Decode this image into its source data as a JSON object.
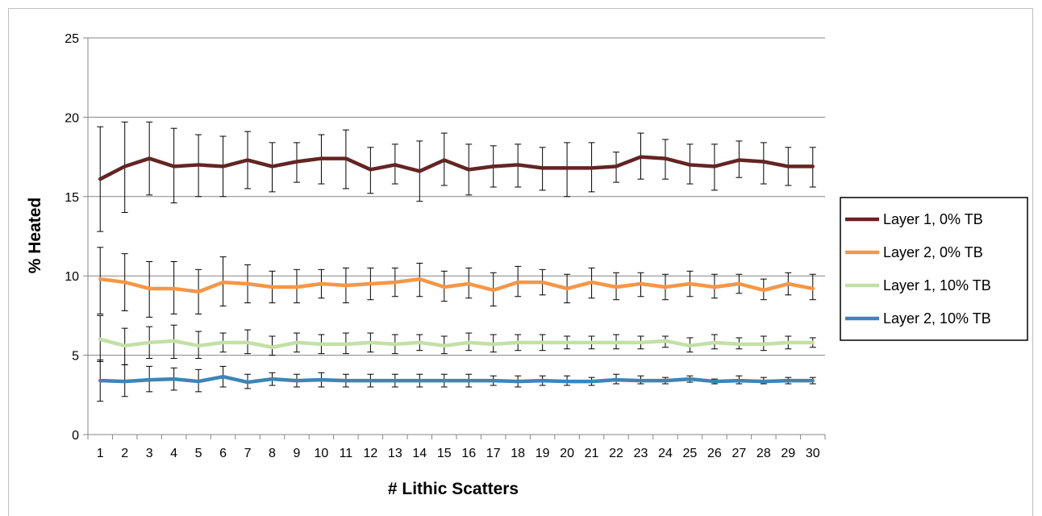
{
  "chart_data": {
    "type": "line",
    "title": "",
    "xlabel": "# Lithic Scatters",
    "ylabel": "% Heated",
    "x": [
      1,
      2,
      3,
      4,
      5,
      6,
      7,
      8,
      9,
      10,
      11,
      12,
      13,
      14,
      15,
      16,
      17,
      18,
      19,
      20,
      21,
      22,
      23,
      24,
      25,
      26,
      27,
      28,
      29,
      30
    ],
    "x_tick_labels": [
      "1",
      "2",
      "3",
      "4",
      "5",
      "6",
      "7",
      "8",
      "9",
      "10",
      "11",
      "12",
      "13",
      "14",
      "15",
      "16",
      "17",
      "18",
      "19",
      "20",
      "21",
      "22",
      "23",
      "24",
      "25",
      "26",
      "27",
      "28",
      "29",
      "30"
    ],
    "ylim": [
      0,
      25
    ],
    "y_ticks": [
      "0",
      "5",
      "10",
      "15",
      "20",
      "25"
    ],
    "grid": "horizontal",
    "legend_position": "right",
    "series": [
      {
        "name": "Layer 1, 0% TB",
        "color": "#632523",
        "values": [
          16.1,
          16.9,
          17.4,
          16.9,
          17.0,
          16.9,
          17.3,
          16.9,
          17.2,
          17.4,
          17.4,
          16.7,
          17.0,
          16.6,
          17.3,
          16.7,
          16.9,
          17.0,
          16.8,
          16.8,
          16.8,
          16.9,
          17.5,
          17.4,
          17.0,
          16.9,
          17.3,
          17.2,
          16.9,
          16.9
        ],
        "err_low": [
          12.8,
          14.0,
          15.1,
          14.6,
          15.0,
          15.0,
          15.5,
          15.3,
          15.9,
          15.8,
          15.5,
          15.2,
          15.8,
          14.7,
          15.7,
          15.1,
          15.6,
          15.6,
          15.4,
          15.0,
          15.3,
          15.9,
          16.1,
          16.1,
          15.8,
          15.4,
          16.2,
          15.8,
          15.7,
          15.6
        ],
        "err_high": [
          19.4,
          19.7,
          19.7,
          19.3,
          18.9,
          18.8,
          19.1,
          18.4,
          18.4,
          18.9,
          19.2,
          18.1,
          18.3,
          18.5,
          19.0,
          18.3,
          18.2,
          18.3,
          18.1,
          18.4,
          18.4,
          17.8,
          19.0,
          18.6,
          18.3,
          18.3,
          18.5,
          18.4,
          18.1,
          18.1
        ]
      },
      {
        "name": "Layer 2, 0% TB",
        "color": "#f79646",
        "values": [
          9.8,
          9.6,
          9.2,
          9.2,
          9.0,
          9.6,
          9.5,
          9.3,
          9.3,
          9.5,
          9.4,
          9.5,
          9.6,
          9.8,
          9.3,
          9.5,
          9.1,
          9.6,
          9.6,
          9.2,
          9.6,
          9.3,
          9.5,
          9.3,
          9.5,
          9.3,
          9.5,
          9.1,
          9.5,
          9.2
        ],
        "err_low": [
          7.6,
          7.8,
          7.4,
          7.6,
          7.6,
          8.1,
          8.3,
          8.3,
          8.3,
          8.6,
          8.3,
          8.5,
          8.7,
          8.7,
          8.4,
          8.6,
          8.1,
          8.7,
          8.8,
          8.3,
          8.6,
          8.5,
          8.7,
          8.5,
          8.7,
          8.6,
          8.9,
          8.5,
          8.8,
          8.5
        ],
        "err_high": [
          11.8,
          11.4,
          10.9,
          10.9,
          10.4,
          11.2,
          10.7,
          10.3,
          10.4,
          10.4,
          10.5,
          10.5,
          10.5,
          10.8,
          10.3,
          10.5,
          10.2,
          10.6,
          10.4,
          10.1,
          10.5,
          10.2,
          10.2,
          10.1,
          10.3,
          10.1,
          10.1,
          9.8,
          10.2,
          10.1
        ]
      },
      {
        "name": "Layer 1, 10% TB",
        "color": "#c3e0a6",
        "values": [
          6.0,
          5.6,
          5.8,
          5.9,
          5.6,
          5.8,
          5.8,
          5.5,
          5.8,
          5.7,
          5.7,
          5.8,
          5.7,
          5.8,
          5.6,
          5.8,
          5.7,
          5.8,
          5.8,
          5.8,
          5.8,
          5.8,
          5.8,
          5.9,
          5.6,
          5.8,
          5.7,
          5.7,
          5.8,
          5.8
        ],
        "err_low": [
          4.6,
          4.4,
          4.8,
          4.8,
          4.8,
          5.2,
          5.1,
          5.0,
          5.2,
          5.1,
          5.1,
          5.2,
          5.1,
          5.3,
          5.1,
          5.3,
          5.2,
          5.3,
          5.3,
          5.4,
          5.4,
          5.4,
          5.4,
          5.5,
          5.2,
          5.4,
          5.4,
          5.3,
          5.4,
          5.5
        ],
        "err_high": [
          7.5,
          6.7,
          6.8,
          6.9,
          6.5,
          6.4,
          6.6,
          6.2,
          6.4,
          6.3,
          6.4,
          6.4,
          6.3,
          6.3,
          6.2,
          6.4,
          6.3,
          6.3,
          6.3,
          6.2,
          6.2,
          6.3,
          6.2,
          6.2,
          6.1,
          6.3,
          6.1,
          6.2,
          6.2,
          6.1
        ]
      },
      {
        "name": "Layer 2, 10% TB",
        "color": "#3d85b8",
        "values": [
          3.4,
          3.35,
          3.45,
          3.5,
          3.35,
          3.65,
          3.3,
          3.5,
          3.4,
          3.45,
          3.4,
          3.4,
          3.4,
          3.4,
          3.4,
          3.4,
          3.4,
          3.35,
          3.4,
          3.35,
          3.35,
          3.45,
          3.4,
          3.4,
          3.5,
          3.35,
          3.4,
          3.35,
          3.4,
          3.4
        ],
        "err_low": [
          2.1,
          2.4,
          2.7,
          2.8,
          2.7,
          3.0,
          2.9,
          3.1,
          3.0,
          3.0,
          3.0,
          3.0,
          3.0,
          3.0,
          3.0,
          3.0,
          3.1,
          3.0,
          3.1,
          3.1,
          3.1,
          3.2,
          3.2,
          3.2,
          3.3,
          3.2,
          3.2,
          3.2,
          3.2,
          3.2
        ],
        "err_high": [
          4.7,
          4.4,
          4.3,
          4.2,
          4.1,
          4.3,
          3.8,
          3.9,
          3.8,
          3.9,
          3.8,
          3.8,
          3.8,
          3.8,
          3.8,
          3.8,
          3.7,
          3.7,
          3.7,
          3.7,
          3.6,
          3.8,
          3.7,
          3.6,
          3.7,
          3.5,
          3.7,
          3.6,
          3.6,
          3.6
        ]
      }
    ]
  }
}
